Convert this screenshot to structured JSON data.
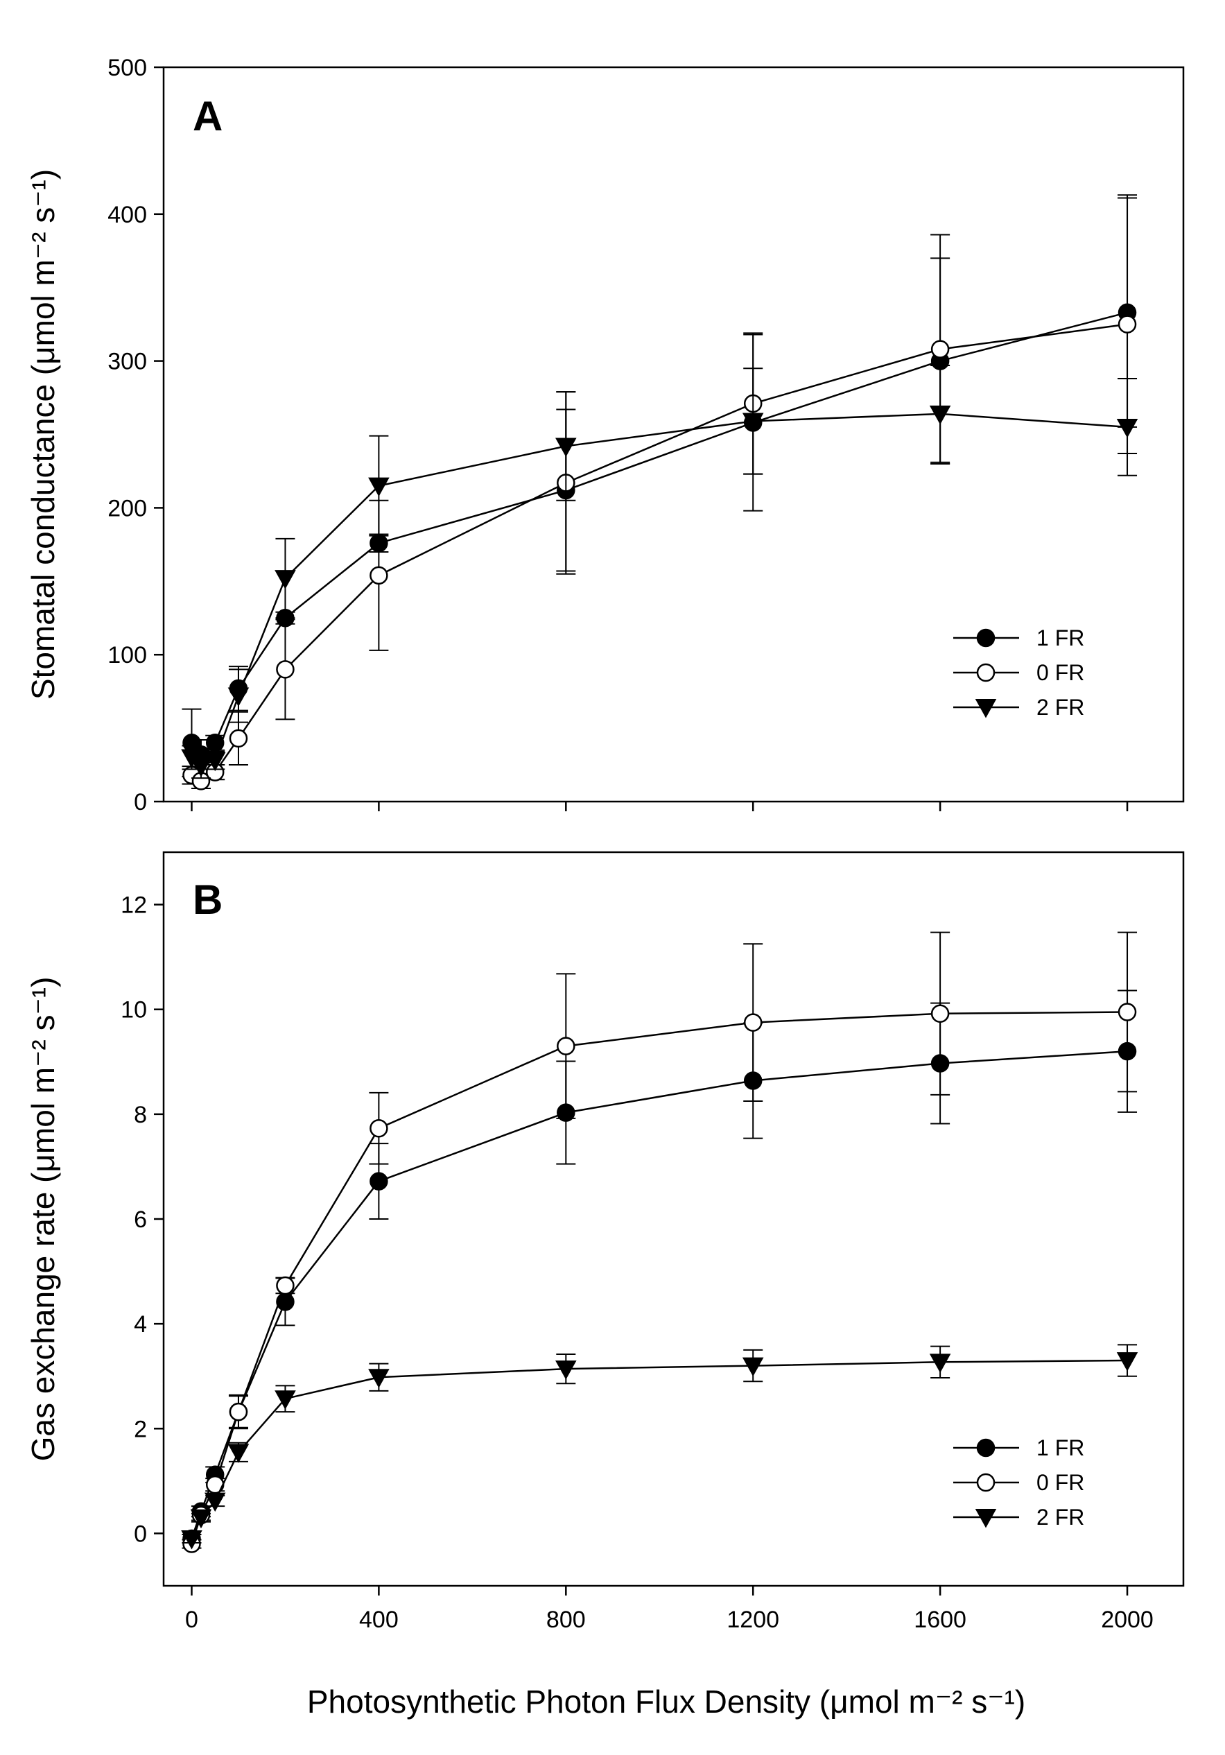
{
  "figure": {
    "x_axis_title": "Photosynthetic Photon Flux Density (μmol m⁻² s⁻¹)"
  },
  "chart_data": [
    {
      "type": "line",
      "panel_label": "A",
      "ylabel": "Stomatal conductance (μmol m⁻² s⁻¹)",
      "xlabel": "Photosynthetic Photon Flux Density (μmol m⁻² s⁻¹)",
      "xlim": [
        -60,
        2120
      ],
      "ylim": [
        0,
        500
      ],
      "xticks": [
        0,
        400,
        800,
        1200,
        1600,
        2000
      ],
      "xtick_labels": [
        "",
        "",
        "",
        "",
        "",
        ""
      ],
      "yticks": [
        0,
        100,
        200,
        300,
        400,
        500
      ],
      "ytick_labels": [
        "0",
        "100",
        "200",
        "300",
        "400",
        "500"
      ],
      "legend_position": "lower-right",
      "series": [
        {
          "name": "1 FR",
          "marker": "filled-circle",
          "x": [
            0,
            20,
            50,
            100,
            200,
            400,
            800,
            1200,
            1600,
            2000
          ],
          "y": [
            40,
            32,
            40,
            77,
            125,
            176,
            212,
            258,
            300,
            333
          ],
          "err": [
            23,
            10,
            5,
            15,
            4,
            6,
            55,
            60,
            70,
            78
          ]
        },
        {
          "name": "0 FR",
          "marker": "open-circle",
          "x": [
            0,
            20,
            50,
            100,
            200,
            400,
            800,
            1200,
            1600,
            2000
          ],
          "y": [
            18,
            14,
            20,
            43,
            90,
            154,
            217,
            271,
            308,
            325
          ],
          "err": [
            6,
            5,
            5,
            18,
            34,
            51,
            62,
            48,
            78,
            88
          ]
        },
        {
          "name": "2 FR",
          "marker": "filled-triangle-down",
          "x": [
            0,
            20,
            50,
            100,
            200,
            400,
            800,
            1200,
            1600,
            2000
          ],
          "y": [
            30,
            24,
            28,
            72,
            152,
            215,
            242,
            259,
            264,
            255
          ],
          "err": [
            8,
            8,
            6,
            18,
            27,
            34,
            37,
            36,
            33,
            33
          ]
        }
      ]
    },
    {
      "type": "line",
      "panel_label": "B",
      "ylabel": "Gas exchange rate (μmol m⁻² s⁻¹)",
      "xlabel": "Photosynthetic Photon Flux Density (μmol m⁻² s⁻¹)",
      "xlim": [
        -60,
        2120
      ],
      "ylim": [
        -1,
        13
      ],
      "xticks": [
        0,
        400,
        800,
        1200,
        1600,
        2000
      ],
      "xtick_labels": [
        "0",
        "400",
        "800",
        "1200",
        "1600",
        "2000"
      ],
      "yticks": [
        0,
        2,
        4,
        6,
        8,
        10,
        12
      ],
      "ytick_labels": [
        "0",
        "2",
        "4",
        "6",
        "8",
        "10",
        "12"
      ],
      "legend_position": "lower-right",
      "series": [
        {
          "name": "1 FR",
          "marker": "filled-circle",
          "x": [
            0,
            20,
            50,
            100,
            200,
            400,
            800,
            1200,
            1600,
            2000
          ],
          "y": [
            -0.1,
            0.42,
            1.12,
            2.32,
            4.42,
            6.72,
            8.03,
            8.64,
            8.97,
            9.2
          ],
          "err": [
            0.08,
            0.1,
            0.15,
            0.3,
            0.45,
            0.72,
            0.98,
            1.1,
            1.15,
            1.16
          ]
        },
        {
          "name": "0 FR",
          "marker": "open-circle",
          "x": [
            0,
            20,
            50,
            100,
            200,
            400,
            800,
            1200,
            1600,
            2000
          ],
          "y": [
            -0.2,
            0.35,
            0.93,
            2.32,
            4.73,
            7.73,
            9.3,
            9.75,
            9.92,
            9.95
          ],
          "err": [
            0.08,
            0.1,
            0.12,
            0.32,
            0.15,
            0.68,
            1.38,
            1.5,
            1.55,
            1.52
          ]
        },
        {
          "name": "2 FR",
          "marker": "filled-triangle-down",
          "x": [
            0,
            20,
            50,
            100,
            200,
            400,
            800,
            1200,
            1600,
            2000
          ],
          "y": [
            -0.1,
            0.3,
            0.62,
            1.55,
            2.57,
            2.98,
            3.14,
            3.2,
            3.27,
            3.3
          ],
          "err": [
            0.08,
            0.08,
            0.1,
            0.18,
            0.25,
            0.26,
            0.28,
            0.3,
            0.3,
            0.3
          ]
        }
      ]
    }
  ]
}
